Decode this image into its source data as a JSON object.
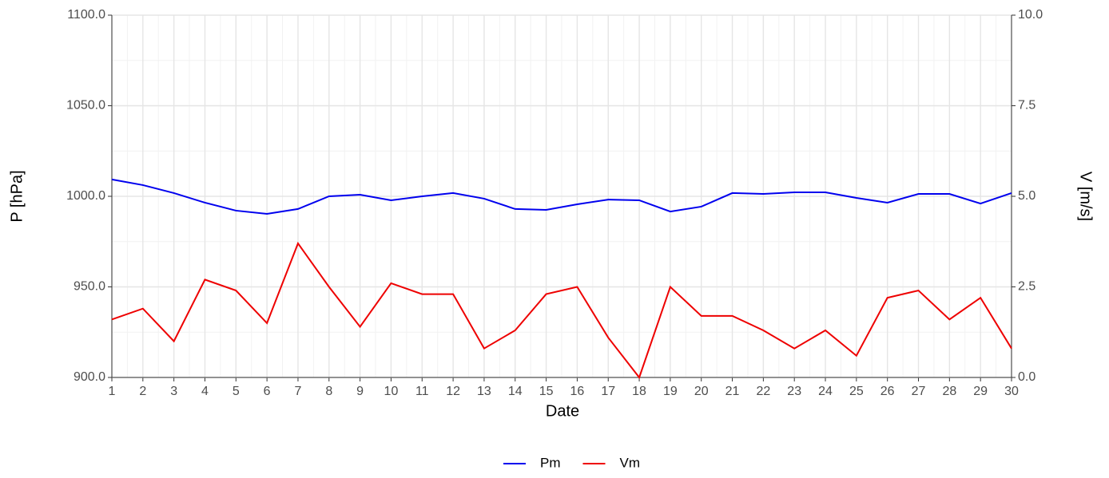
{
  "chart_data": {
    "type": "line",
    "x_label": "Date",
    "y_label": "P [hPa]",
    "y2_label": "V [m/s]",
    "x": [
      1,
      2,
      3,
      4,
      5,
      6,
      7,
      8,
      9,
      10,
      11,
      12,
      13,
      14,
      15,
      16,
      17,
      18,
      19,
      20,
      21,
      22,
      23,
      24,
      25,
      26,
      27,
      28,
      29,
      30
    ],
    "xlim": [
      1,
      30
    ],
    "xticks": [
      1,
      2,
      3,
      4,
      5,
      6,
      7,
      8,
      9,
      10,
      11,
      12,
      13,
      14,
      15,
      16,
      17,
      18,
      19,
      20,
      21,
      22,
      23,
      24,
      25,
      26,
      27,
      28,
      29,
      30
    ],
    "ylim": [
      900,
      1100
    ],
    "yticks": [
      {
        "value": 900,
        "label": "900.0"
      },
      {
        "value": 950,
        "label": "950.0"
      },
      {
        "value": 1000,
        "label": "1000.0"
      },
      {
        "value": 1050,
        "label": "1050.0"
      },
      {
        "value": 1100,
        "label": "1100.0"
      }
    ],
    "y2lim": [
      0,
      10
    ],
    "y2ticks": [
      {
        "value": 0,
        "label": "0.0"
      },
      2.5,
      {
        "value": 5,
        "label": "5.0"
      },
      7.5,
      {
        "value": 10,
        "label": "10.0"
      }
    ],
    "grid": true,
    "legend": "bottom",
    "series": [
      {
        "name": "Pm",
        "color": "#0000ee",
        "values": [
          1009.3,
          1006.2,
          1001.8,
          996.5,
          992.1,
          990.3,
          993.0,
          1000.0,
          1000.9,
          997.8,
          1000.0,
          1001.8,
          998.7,
          993.0,
          992.5,
          995.6,
          998.2,
          997.8,
          991.6,
          994.3,
          1001.8,
          1001.3,
          1002.2,
          1002.2,
          999.1,
          996.5,
          1001.3,
          1001.3,
          996.0,
          1001.8
        ]
      },
      {
        "name": "Vm",
        "color": "#ee0000",
        "axis": "y2",
        "values": [
          1.6,
          1.9,
          1.0,
          2.7,
          2.4,
          1.5,
          3.7,
          2.5,
          1.4,
          2.6,
          2.3,
          2.3,
          0.8,
          1.3,
          2.3,
          2.5,
          1.1,
          0,
          2.5,
          1.7,
          1.7,
          1.3,
          0.8,
          1.3,
          0.6,
          2.2,
          2.4,
          1.6,
          2.2,
          0.8
        ]
      }
    ]
  }
}
